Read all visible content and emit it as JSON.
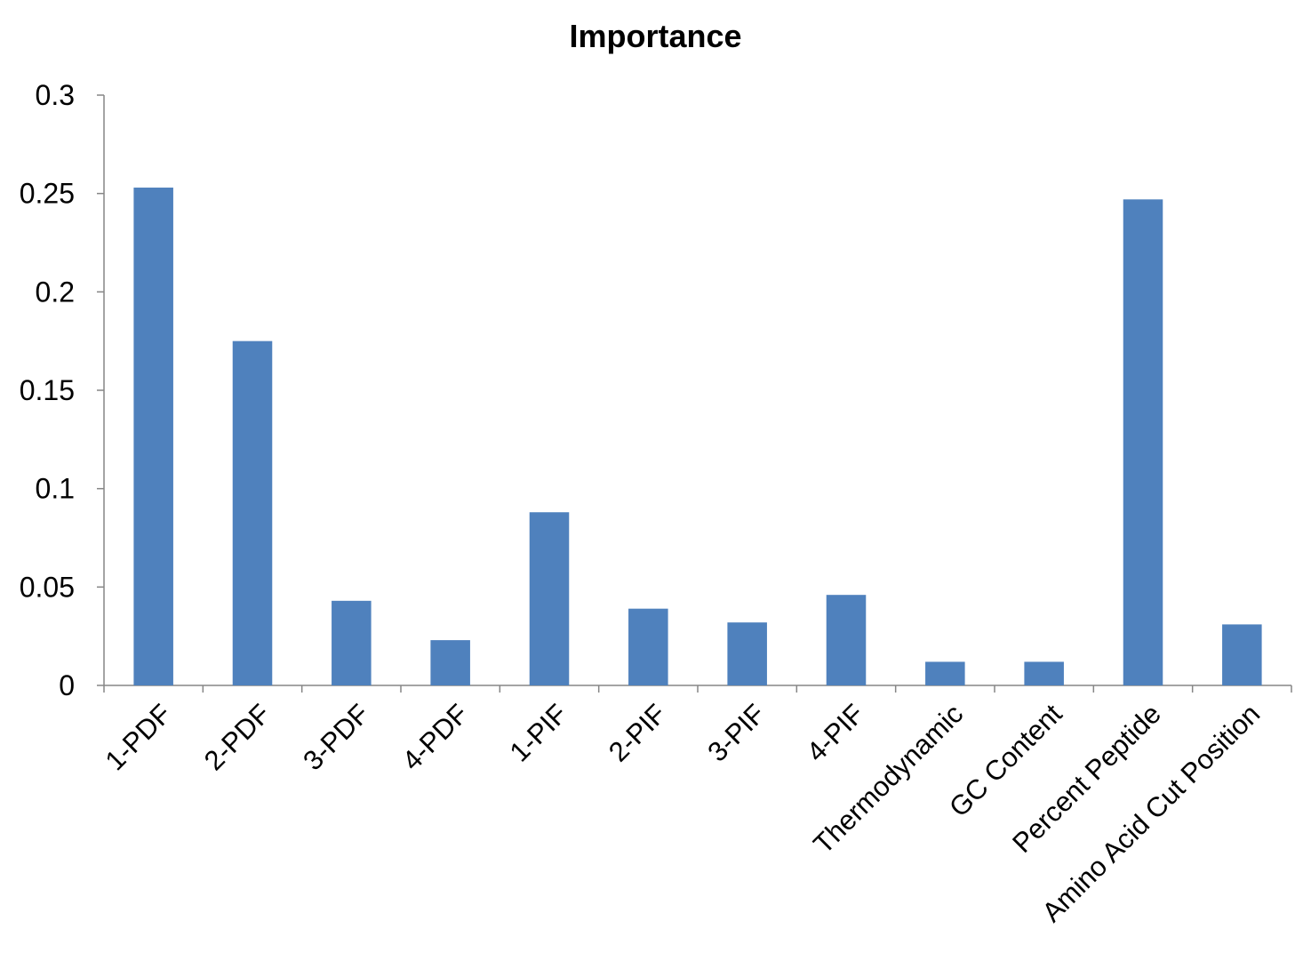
{
  "chart_data": {
    "type": "bar",
    "title": "Importance",
    "xlabel": "",
    "ylabel": "",
    "categories": [
      "1-PDF",
      "2-PDF",
      "3-PDF",
      "4-PDF",
      "1-PIF",
      "2-PIF",
      "3-PIF",
      "4-PIF",
      "Thermodynamic",
      "GC Content",
      "Percent Peptide",
      "Amino Acid Cut Position"
    ],
    "values": [
      0.253,
      0.175,
      0.043,
      0.023,
      0.088,
      0.039,
      0.032,
      0.046,
      0.012,
      0.012,
      0.247,
      0.031
    ],
    "ylim": [
      0,
      0.3
    ],
    "yticks": [
      "0",
      "0.05",
      "0.1",
      "0.15",
      "0.2",
      "0.25",
      "0.3"
    ],
    "grid": false,
    "legend": "none",
    "bar_color": "#4F81BD",
    "axis_color": "#868686"
  }
}
